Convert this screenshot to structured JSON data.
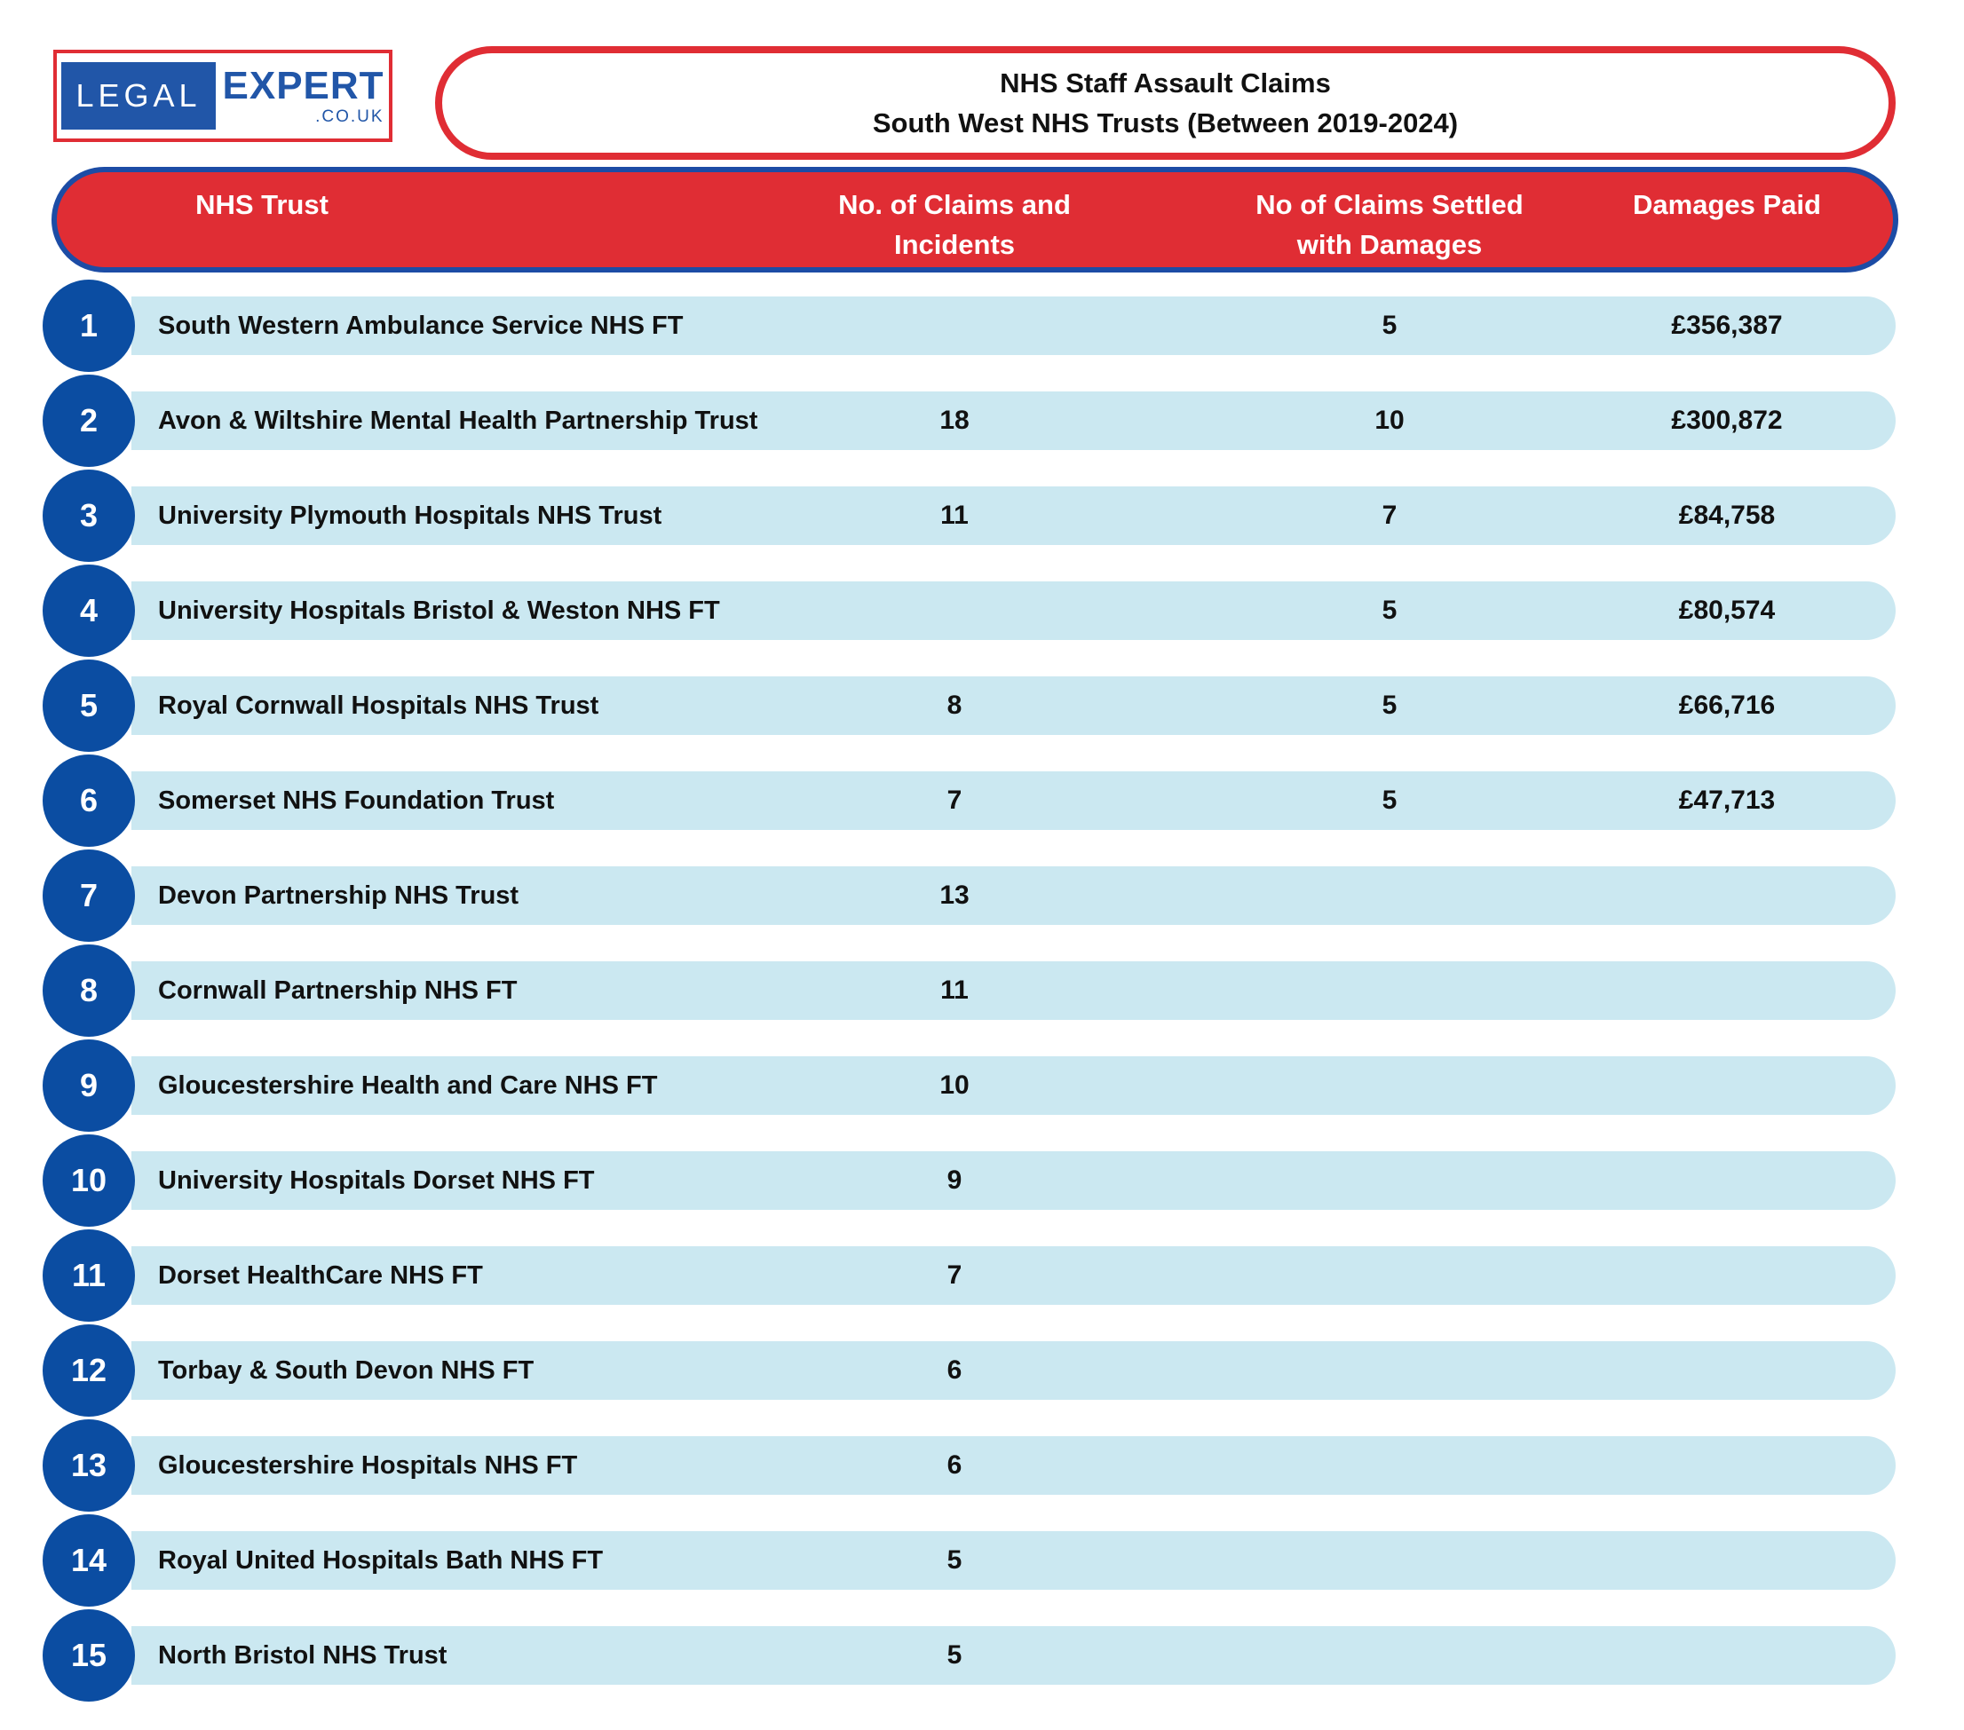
{
  "logo": {
    "part1": "LEGAL",
    "part2": "EXPERT",
    "part3": ".CO.UK"
  },
  "title": {
    "line1": "NHS Staff Assault Claims",
    "line2": "South West NHS Trusts (Between 2019-2024)"
  },
  "table": {
    "headers": {
      "trust": "NHS Trust",
      "claims_line1": "No. of Claims and",
      "claims_line2": "Incidents",
      "settled_line1": "No of Claims Settled",
      "settled_line2": "with Damages",
      "damages": "Damages Paid"
    },
    "rows": [
      {
        "rank": "1",
        "trust": "South Western Ambulance Service NHS FT",
        "claims": "",
        "settled": "5",
        "damages": "£356,387"
      },
      {
        "rank": "2",
        "trust": "Avon & Wiltshire Mental Health Partnership Trust",
        "claims": "18",
        "settled": "10",
        "damages": "£300,872"
      },
      {
        "rank": "3",
        "trust": "University Plymouth Hospitals NHS Trust",
        "claims": "11",
        "settled": "7",
        "damages": "£84,758"
      },
      {
        "rank": "4",
        "trust": "University Hospitals Bristol & Weston NHS FT",
        "claims": "",
        "settled": "5",
        "damages": "£80,574"
      },
      {
        "rank": "5",
        "trust": "Royal Cornwall Hospitals NHS Trust",
        "claims": "8",
        "settled": "5",
        "damages": "£66,716"
      },
      {
        "rank": "6",
        "trust": "Somerset NHS Foundation Trust",
        "claims": "7",
        "settled": "5",
        "damages": "£47,713"
      },
      {
        "rank": "7",
        "trust": "Devon Partnership NHS Trust",
        "claims": "13",
        "settled": "",
        "damages": ""
      },
      {
        "rank": "8",
        "trust": "Cornwall Partnership NHS FT",
        "claims": "11",
        "settled": "",
        "damages": ""
      },
      {
        "rank": "9",
        "trust": "Gloucestershire Health and Care NHS FT",
        "claims": "10",
        "settled": "",
        "damages": ""
      },
      {
        "rank": "10",
        "trust": "University Hospitals Dorset NHS FT",
        "claims": "9",
        "settled": "",
        "damages": ""
      },
      {
        "rank": "11",
        "trust": "Dorset HealthCare NHS FT",
        "claims": "7",
        "settled": "",
        "damages": ""
      },
      {
        "rank": "12",
        "trust": "Torbay & South Devon NHS FT",
        "claims": "6",
        "settled": "",
        "damages": ""
      },
      {
        "rank": "13",
        "trust": "Gloucestershire Hospitals NHS FT",
        "claims": "6",
        "settled": "",
        "damages": ""
      },
      {
        "rank": "14",
        "trust": "Royal United Hospitals Bath NHS FT",
        "claims": "5",
        "settled": "",
        "damages": ""
      },
      {
        "rank": "15",
        "trust": "North Bristol NHS Trust",
        "claims": "5",
        "settled": "",
        "damages": ""
      }
    ]
  },
  "chart_data": {
    "type": "table",
    "title": "NHS Staff Assault Claims — South West NHS Trusts (Between 2019-2024)",
    "columns": [
      "NHS Trust",
      "No. of Claims and Incidents",
      "No of Claims Settled with Damages",
      "Damages Paid"
    ],
    "rows": [
      [
        "South Western Ambulance Service NHS FT",
        null,
        5,
        "£356,387"
      ],
      [
        "Avon & Wiltshire Mental Health Partnership Trust",
        18,
        10,
        "£300,872"
      ],
      [
        "University Plymouth Hospitals NHS Trust",
        11,
        7,
        "£84,758"
      ],
      [
        "University Hospitals Bristol & Weston NHS FT",
        null,
        5,
        "£80,574"
      ],
      [
        "Royal Cornwall Hospitals NHS Trust",
        8,
        5,
        "£66,716"
      ],
      [
        "Somerset NHS Foundation Trust",
        7,
        5,
        "£47,713"
      ],
      [
        "Devon Partnership NHS Trust",
        13,
        null,
        null
      ],
      [
        "Cornwall Partnership NHS FT",
        11,
        null,
        null
      ],
      [
        "Gloucestershire Health and Care NHS FT",
        10,
        null,
        null
      ],
      [
        "University Hospitals Dorset NHS FT",
        9,
        null,
        null
      ],
      [
        "Dorset HealthCare NHS FT",
        7,
        null,
        null
      ],
      [
        "Torbay & South Devon NHS FT",
        6,
        null,
        null
      ],
      [
        "Gloucestershire Hospitals NHS FT",
        6,
        null,
        null
      ],
      [
        "Royal United Hospitals Bath NHS FT",
        5,
        null,
        null
      ],
      [
        "North Bristol NHS Trust",
        5,
        null,
        null
      ]
    ]
  },
  "colors": {
    "red": "#E02D34",
    "blue_border": "#1C4CA5",
    "circle_blue": "#0B4DA2",
    "row_blue": "#CBE8F1",
    "logo_blue": "#2156A8"
  }
}
